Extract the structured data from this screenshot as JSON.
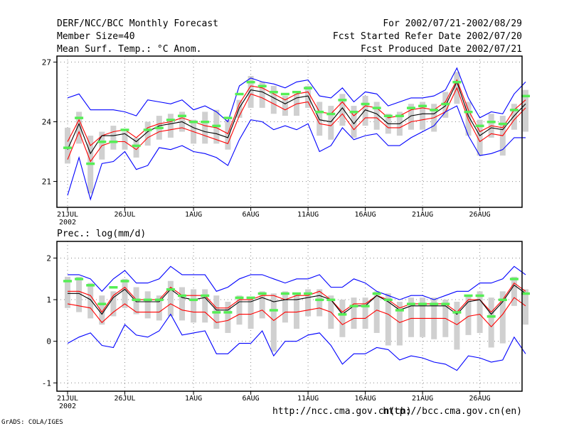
{
  "header": {
    "title": "DERF/NCC/BCC Monthly Forecast",
    "member_size": "Member Size=40",
    "variable": "Mean Surf. Temp.: °C Anom.",
    "period": "For 2002/07/21-2002/08/29",
    "refer_date": "Fcst Started Refer Date 2002/07/20",
    "produced_date": "Fcst Produced Date 2002/07/21"
  },
  "footer": {
    "grads": "GrADS: COLA/IGES",
    "url_ncc": "http://ncc.cma.gov.cn(ch)",
    "url_bcc": "http://bcc.cma.gov.cn(en)"
  },
  "colors": {
    "envelope": "#0000ff",
    "spread": "#ff0000",
    "mean": "#000000",
    "box": "#d0d0d0",
    "marker": "#55ee55"
  },
  "chart_data": [
    {
      "type": "line",
      "title": "Mean Surf. Temp.: °C Anom.",
      "x_tick_labels": [
        "21JUL",
        "26JUL",
        "1AUG",
        "6AUG",
        "11AUG",
        "16AUG",
        "21AUG",
        "26AUG"
      ],
      "x_tick_days": [
        0,
        5,
        11,
        16,
        21,
        26,
        31,
        36
      ],
      "x_year_label": "2002",
      "yticks": [
        21,
        24,
        27
      ],
      "ylim": [
        19.7,
        27.3
      ],
      "series": [
        {
          "name": "max",
          "color": "#0000ff",
          "values": [
            25.2,
            25.4,
            24.6,
            24.6,
            24.6,
            24.5,
            24.3,
            25.1,
            25.0,
            24.9,
            25.1,
            24.6,
            24.8,
            24.5,
            24.0,
            25.8,
            26.2,
            26.0,
            25.9,
            25.7,
            26.0,
            26.1,
            25.3,
            25.2,
            25.7,
            25.0,
            25.5,
            25.4,
            24.8,
            25.0,
            25.2,
            25.2,
            25.3,
            25.6,
            26.7,
            25.2,
            24.2,
            24.5,
            24.4,
            25.4,
            26.0
          ]
        },
        {
          "name": "upper",
          "color": "#ff0000",
          "values": [
            23.0,
            24.1,
            22.8,
            23.3,
            23.5,
            23.6,
            23.2,
            23.7,
            23.9,
            24.0,
            24.2,
            24.0,
            23.8,
            23.7,
            23.4,
            24.9,
            25.8,
            25.7,
            25.4,
            25.1,
            25.4,
            25.5,
            24.5,
            24.4,
            25.0,
            24.3,
            24.8,
            24.7,
            24.2,
            24.3,
            24.6,
            24.7,
            24.6,
            25.0,
            26.1,
            24.6,
            23.5,
            23.8,
            23.7,
            24.6,
            25.1
          ]
        },
        {
          "name": "mean",
          "color": "#000000",
          "values": [
            22.6,
            23.9,
            22.4,
            23.3,
            23.3,
            23.4,
            23.0,
            23.5,
            23.8,
            23.9,
            24.0,
            23.7,
            23.5,
            23.4,
            23.2,
            24.7,
            25.6,
            25.5,
            25.2,
            24.9,
            25.2,
            25.3,
            24.1,
            24.0,
            24.7,
            23.9,
            24.6,
            24.4,
            23.9,
            23.9,
            24.3,
            24.4,
            24.4,
            24.8,
            26.0,
            24.3,
            23.3,
            23.7,
            23.6,
            24.3,
            24.9
          ]
        },
        {
          "name": "lower",
          "color": "#ff0000",
          "values": [
            22.1,
            23.5,
            22.0,
            22.8,
            23.0,
            23.0,
            22.6,
            23.2,
            23.5,
            23.6,
            23.7,
            23.5,
            23.3,
            23.1,
            22.9,
            24.3,
            25.4,
            25.2,
            24.9,
            24.6,
            24.9,
            25.0,
            23.9,
            23.8,
            24.4,
            23.6,
            24.2,
            24.2,
            23.7,
            23.7,
            24.0,
            24.1,
            24.2,
            24.5,
            25.7,
            24.1,
            23.0,
            23.4,
            23.3,
            24.1,
            24.7
          ]
        },
        {
          "name": "min",
          "color": "#0000ff",
          "values": [
            20.3,
            22.2,
            20.1,
            21.9,
            22.0,
            22.5,
            21.6,
            21.8,
            22.7,
            22.6,
            22.8,
            22.5,
            22.4,
            22.2,
            21.8,
            23.1,
            24.1,
            24.0,
            23.6,
            23.8,
            23.6,
            23.9,
            22.5,
            22.8,
            23.7,
            23.1,
            23.3,
            23.4,
            22.8,
            22.8,
            23.2,
            23.5,
            23.8,
            24.5,
            24.8,
            23.3,
            22.3,
            22.4,
            22.6,
            23.2,
            23.2
          ]
        }
      ],
      "boxes": [
        [
          21.9,
          23.7
        ],
        [
          22.9,
          24.5
        ],
        [
          20.4,
          23.3
        ],
        [
          22.1,
          23.5
        ],
        [
          22.6,
          23.8
        ],
        [
          22.6,
          23.5
        ],
        [
          22.2,
          23.2
        ],
        [
          22.8,
          24.0
        ],
        [
          23.1,
          24.3
        ],
        [
          23.2,
          24.4
        ],
        [
          23.5,
          24.5
        ],
        [
          22.9,
          24.1
        ],
        [
          22.9,
          24.5
        ],
        [
          22.9,
          24.6
        ],
        [
          22.6,
          24.1
        ],
        [
          24.2,
          25.1
        ],
        [
          24.7,
          26.3
        ],
        [
          24.7,
          26.0
        ],
        [
          24.4,
          25.8
        ],
        [
          24.3,
          25.3
        ],
        [
          24.3,
          25.4
        ],
        [
          24.7,
          25.8
        ],
        [
          23.3,
          25.0
        ],
        [
          23.1,
          24.8
        ],
        [
          23.8,
          25.4
        ],
        [
          23.2,
          24.8
        ],
        [
          23.8,
          25.3
        ],
        [
          23.6,
          25.0
        ],
        [
          23.4,
          24.4
        ],
        [
          23.3,
          24.5
        ],
        [
          23.6,
          24.9
        ],
        [
          23.6,
          25.0
        ],
        [
          23.5,
          24.9
        ],
        [
          24.2,
          25.5
        ],
        [
          24.9,
          26.5
        ],
        [
          23.3,
          25.0
        ],
        [
          22.3,
          24.1
        ],
        [
          23.2,
          24.4
        ],
        [
          22.3,
          24.3
        ],
        [
          23.6,
          24.9
        ],
        [
          23.5,
          25.6
        ]
      ],
      "markers": [
        22.7,
        24.2,
        21.9,
        23.0,
        23.0,
        23.6,
        22.8,
        23.6,
        23.7,
        24.1,
        24.3,
        24.0,
        24.0,
        23.8,
        24.2,
        25.4,
        26.0,
        25.8,
        25.5,
        25.4,
        25.5,
        25.7,
        24.5,
        24.4,
        25.1,
        24.5,
        24.9,
        24.7,
        24.3,
        24.3,
        24.7,
        24.8,
        24.6,
        24.9,
        26.0,
        24.5,
        23.8,
        24.0,
        23.9,
        24.6,
        25.3
      ]
    },
    {
      "type": "line",
      "title": "Prec.: log(mm/d)",
      "x_tick_labels": [
        "21JUL",
        "26JUL",
        "1AUG",
        "6AUG",
        "11AUG",
        "16AUG",
        "21AUG",
        "26AUG"
      ],
      "x_tick_days": [
        0,
        5,
        11,
        16,
        21,
        26,
        31,
        36
      ],
      "x_year_label": "2002",
      "yticks": [
        -1,
        0,
        1,
        2
      ],
      "ylim": [
        -1.2,
        2.4
      ],
      "series": [
        {
          "name": "max",
          "color": "#0000ff",
          "values": [
            1.6,
            1.6,
            1.5,
            1.2,
            1.5,
            1.7,
            1.4,
            1.4,
            1.5,
            1.8,
            1.6,
            1.6,
            1.6,
            1.2,
            1.3,
            1.5,
            1.6,
            1.6,
            1.5,
            1.4,
            1.5,
            1.5,
            1.6,
            1.3,
            1.3,
            1.5,
            1.4,
            1.2,
            1.1,
            1.0,
            1.1,
            1.1,
            1.0,
            1.1,
            1.2,
            1.2,
            1.4,
            1.4,
            1.5,
            1.8,
            1.6
          ]
        },
        {
          "name": "upper",
          "color": "#ff0000",
          "values": [
            1.2,
            1.2,
            1.1,
            0.7,
            1.1,
            1.3,
            1.0,
            1.0,
            1.0,
            1.3,
            1.1,
            1.1,
            1.1,
            0.8,
            0.8,
            1.0,
            1.0,
            1.1,
            1.1,
            1.0,
            1.1,
            1.1,
            1.2,
            1.0,
            0.7,
            0.9,
            0.9,
            1.1,
            1.0,
            0.8,
            0.9,
            0.9,
            0.9,
            0.9,
            0.7,
            1.0,
            1.0,
            0.7,
            1.0,
            1.4,
            1.2
          ]
        },
        {
          "name": "mean",
          "color": "#000000",
          "values": [
            1.15,
            1.15,
            1.0,
            0.65,
            1.05,
            1.25,
            0.95,
            0.95,
            0.95,
            1.25,
            1.05,
            1.0,
            1.05,
            0.75,
            0.75,
            0.95,
            0.95,
            1.05,
            0.95,
            1.0,
            1.0,
            1.05,
            1.1,
            1.0,
            0.65,
            0.85,
            0.85,
            1.1,
            0.95,
            0.75,
            0.85,
            0.85,
            0.85,
            0.85,
            0.65,
            0.95,
            1.0,
            0.65,
            0.95,
            1.35,
            1.15
          ]
        },
        {
          "name": "lower",
          "color": "#ff0000",
          "values": [
            0.9,
            0.85,
            0.8,
            0.45,
            0.7,
            0.9,
            0.7,
            0.7,
            0.7,
            0.9,
            0.75,
            0.7,
            0.7,
            0.45,
            0.5,
            0.65,
            0.65,
            0.75,
            0.5,
            0.7,
            0.7,
            0.75,
            0.8,
            0.7,
            0.4,
            0.55,
            0.55,
            0.75,
            0.65,
            0.45,
            0.55,
            0.55,
            0.55,
            0.55,
            0.4,
            0.6,
            0.65,
            0.35,
            0.65,
            1.05,
            0.85
          ]
        },
        {
          "name": "min",
          "color": "#0000ff",
          "values": [
            -0.05,
            0.1,
            0.2,
            -0.1,
            -0.15,
            0.4,
            0.15,
            0.1,
            0.25,
            0.65,
            0.15,
            0.2,
            0.25,
            -0.3,
            -0.3,
            -0.05,
            -0.05,
            0.25,
            -0.35,
            0.0,
            0.0,
            0.15,
            0.2,
            -0.1,
            -0.55,
            -0.3,
            -0.3,
            -0.15,
            -0.2,
            -0.45,
            -0.35,
            -0.4,
            -0.5,
            -0.55,
            -0.7,
            -0.35,
            -0.4,
            -0.5,
            -0.45,
            0.1,
            -0.3
          ]
        }
      ],
      "boxes": [
        [
          0.8,
          1.55
        ],
        [
          0.7,
          1.55
        ],
        [
          0.55,
          1.4
        ],
        [
          0.4,
          1.1
        ],
        [
          0.6,
          1.2
        ],
        [
          0.8,
          1.5
        ],
        [
          0.65,
          1.3
        ],
        [
          0.55,
          1.2
        ],
        [
          0.5,
          1.1
        ],
        [
          0.6,
          1.45
        ],
        [
          0.5,
          1.3
        ],
        [
          0.45,
          1.25
        ],
        [
          0.45,
          1.25
        ],
        [
          0.3,
          1.1
        ],
        [
          0.2,
          0.95
        ],
        [
          0.4,
          1.1
        ],
        [
          0.3,
          1.0
        ],
        [
          0.55,
          1.2
        ],
        [
          -0.25,
          1.15
        ],
        [
          0.45,
          1.2
        ],
        [
          0.3,
          1.15
        ],
        [
          0.6,
          1.25
        ],
        [
          0.6,
          1.25
        ],
        [
          0.3,
          1.1
        ],
        [
          0.1,
          1.0
        ],
        [
          0.3,
          1.05
        ],
        [
          0.3,
          1.05
        ],
        [
          0.2,
          1.2
        ],
        [
          -0.1,
          1.15
        ],
        [
          -0.1,
          0.95
        ],
        [
          0.1,
          1.05
        ],
        [
          0.1,
          1.05
        ],
        [
          0.05,
          1.05
        ],
        [
          0.1,
          1.0
        ],
        [
          -0.2,
          0.95
        ],
        [
          0.15,
          1.1
        ],
        [
          0.2,
          1.2
        ],
        [
          -0.15,
          1.05
        ],
        [
          -0.05,
          1.2
        ],
        [
          0.85,
          1.55
        ],
        [
          0.4,
          1.25
        ]
      ],
      "markers": [
        1.45,
        1.5,
        1.35,
        0.9,
        1.3,
        1.45,
        1.0,
        1.0,
        1.0,
        1.25,
        1.1,
        1.0,
        1.1,
        0.7,
        0.7,
        1.05,
        1.05,
        1.15,
        0.75,
        1.15,
        1.15,
        1.15,
        1.0,
        1.0,
        0.65,
        0.85,
        0.85,
        1.15,
        1.0,
        0.75,
        0.9,
        0.9,
        0.9,
        0.9,
        0.7,
        1.1,
        1.1,
        0.6,
        1.0,
        1.5,
        1.15
      ]
    }
  ]
}
